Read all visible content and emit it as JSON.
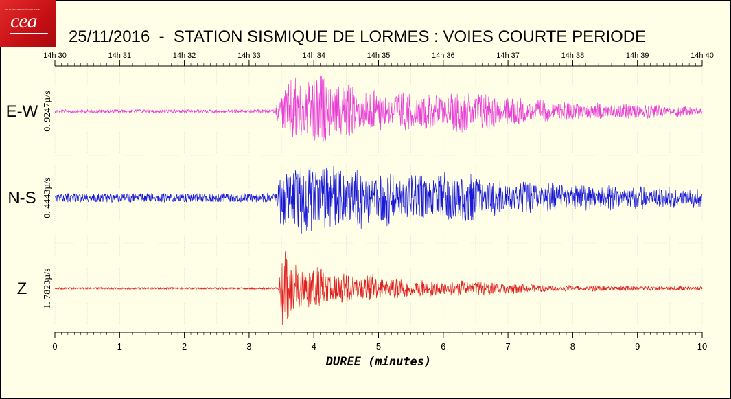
{
  "logo": {
    "text": "cea",
    "small_text": "DE LA RECHERCHE À L'INDUSTRIE"
  },
  "title": "25/11/2016  -  STATION SISMIQUE DE LORMES : VOIES COURTE PERIODE",
  "chart_data": {
    "type": "line",
    "title": "25/11/2016  -  STATION SISMIQUE DE LORMES : VOIES COURTE PERIODE",
    "xlabel": "DUREE (minutes)",
    "xlim": [
      0,
      10
    ],
    "x_ticks": [
      "0",
      "1",
      "2",
      "3",
      "4",
      "5",
      "6",
      "7",
      "8",
      "9",
      "10"
    ],
    "top_ticks": [
      "14h 30",
      "14h 31",
      "14h 32",
      "14h 33",
      "14h 34",
      "14h 35",
      "14h 36",
      "14h 37",
      "14h 38",
      "14h 39",
      "14h 40"
    ],
    "grid": true,
    "series": [
      {
        "name": "E-W",
        "scale_label": "0. 9247µ/s",
        "color": "#e83fd8",
        "onset_min": 3.45,
        "envelope": [
          [
            0,
            0.04
          ],
          [
            3.4,
            0.04
          ],
          [
            3.5,
            0.55
          ],
          [
            3.7,
            0.9
          ],
          [
            4.0,
            1.0
          ],
          [
            4.4,
            0.75
          ],
          [
            5.0,
            0.55
          ],
          [
            5.5,
            0.5
          ],
          [
            6.0,
            0.45
          ],
          [
            6.4,
            0.6
          ],
          [
            6.7,
            0.5
          ],
          [
            7.0,
            0.4
          ],
          [
            7.5,
            0.28
          ],
          [
            8.0,
            0.25
          ],
          [
            8.5,
            0.2
          ],
          [
            9.0,
            0.22
          ],
          [
            9.5,
            0.15
          ],
          [
            10.0,
            0.12
          ]
        ]
      },
      {
        "name": "N-S",
        "scale_label": "0. 4443µ/s",
        "color": "#1818d8",
        "onset_min": 3.5,
        "envelope": [
          [
            0,
            0.1
          ],
          [
            3.4,
            0.1
          ],
          [
            3.5,
            0.7
          ],
          [
            3.7,
            1.0
          ],
          [
            4.0,
            0.95
          ],
          [
            4.5,
            0.8
          ],
          [
            5.0,
            0.7
          ],
          [
            5.5,
            0.6
          ],
          [
            6.0,
            0.6
          ],
          [
            6.3,
            0.7
          ],
          [
            6.6,
            0.5
          ],
          [
            7.0,
            0.45
          ],
          [
            7.5,
            0.4
          ],
          [
            8.0,
            0.35
          ],
          [
            8.5,
            0.3
          ],
          [
            9.0,
            0.3
          ],
          [
            9.5,
            0.28
          ],
          [
            10.0,
            0.25
          ]
        ]
      },
      {
        "name": "Z",
        "scale_label": "1. 7823µ/s",
        "color": "#e02020",
        "onset_min": 3.5,
        "envelope": [
          [
            0,
            0.02
          ],
          [
            3.45,
            0.02
          ],
          [
            3.52,
            1.0
          ],
          [
            3.6,
            0.8
          ],
          [
            3.9,
            0.55
          ],
          [
            4.3,
            0.4
          ],
          [
            5.0,
            0.3
          ],
          [
            5.5,
            0.25
          ],
          [
            6.0,
            0.2
          ],
          [
            6.5,
            0.18
          ],
          [
            7.0,
            0.14
          ],
          [
            7.5,
            0.09
          ],
          [
            8.0,
            0.07
          ],
          [
            9.0,
            0.06
          ],
          [
            10.0,
            0.05
          ]
        ]
      }
    ]
  }
}
